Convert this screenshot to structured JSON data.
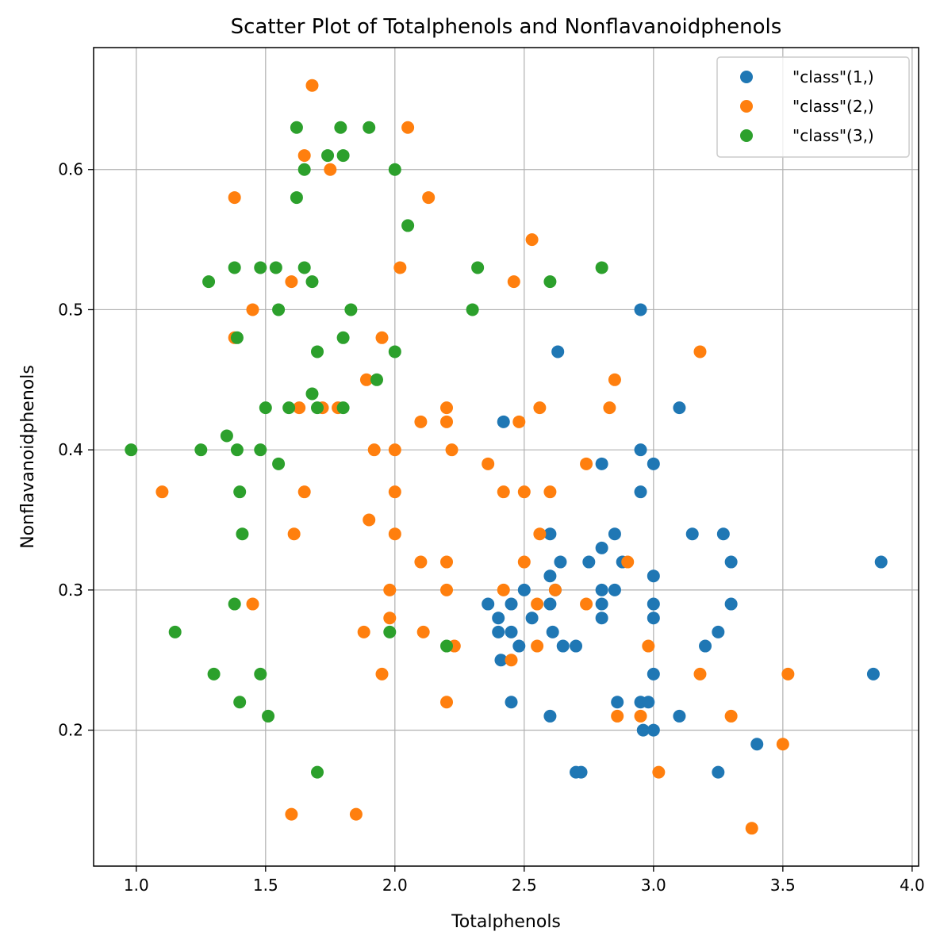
{
  "chart_data": {
    "type": "scatter",
    "title": "Scatter Plot of Totalphenols and Nonflavanoidphenols",
    "xlabel": "Totalphenols",
    "ylabel": "Nonflavanoidphenols",
    "xlim": [
      0.835,
      4.025
    ],
    "ylim": [
      0.103,
      0.687
    ],
    "xticks": [
      1.0,
      1.5,
      2.0,
      2.5,
      3.0,
      3.5,
      4.0
    ],
    "xtick_labels": [
      "1.0",
      "1.5",
      "2.0",
      "2.5",
      "3.0",
      "3.5",
      "4.0"
    ],
    "yticks": [
      0.2,
      0.3,
      0.4,
      0.5,
      0.6
    ],
    "ytick_labels": [
      "0.2",
      "0.3",
      "0.4",
      "0.5",
      "0.6"
    ],
    "grid": true,
    "legend_position": "top-right",
    "series": [
      {
        "name": "\"class\"(1,)",
        "color": "#1f77b4",
        "points": [
          [
            2.95,
            0.5
          ],
          [
            2.63,
            0.47
          ],
          [
            3.1,
            0.43
          ],
          [
            2.42,
            0.42
          ],
          [
            2.95,
            0.4
          ],
          [
            3.0,
            0.39
          ],
          [
            2.8,
            0.39
          ],
          [
            2.95,
            0.37
          ],
          [
            2.6,
            0.34
          ],
          [
            2.85,
            0.34
          ],
          [
            3.15,
            0.34
          ],
          [
            3.27,
            0.34
          ],
          [
            2.8,
            0.33
          ],
          [
            2.64,
            0.32
          ],
          [
            2.75,
            0.32
          ],
          [
            2.88,
            0.32
          ],
          [
            3.3,
            0.32
          ],
          [
            3.88,
            0.32
          ],
          [
            2.6,
            0.31
          ],
          [
            3.0,
            0.31
          ],
          [
            2.5,
            0.3
          ],
          [
            2.62,
            0.3
          ],
          [
            2.8,
            0.3
          ],
          [
            2.85,
            0.3
          ],
          [
            2.36,
            0.29
          ],
          [
            2.45,
            0.29
          ],
          [
            2.6,
            0.29
          ],
          [
            2.8,
            0.29
          ],
          [
            3.0,
            0.29
          ],
          [
            3.3,
            0.29
          ],
          [
            2.4,
            0.28
          ],
          [
            2.53,
            0.28
          ],
          [
            2.8,
            0.28
          ],
          [
            3.0,
            0.28
          ],
          [
            2.4,
            0.27
          ],
          [
            2.45,
            0.27
          ],
          [
            2.61,
            0.27
          ],
          [
            3.25,
            0.27
          ],
          [
            2.48,
            0.26
          ],
          [
            2.65,
            0.26
          ],
          [
            2.7,
            0.26
          ],
          [
            3.2,
            0.26
          ],
          [
            2.41,
            0.25
          ],
          [
            3.0,
            0.24
          ],
          [
            3.85,
            0.24
          ],
          [
            2.45,
            0.22
          ],
          [
            2.86,
            0.22
          ],
          [
            2.95,
            0.22
          ],
          [
            2.98,
            0.22
          ],
          [
            2.6,
            0.21
          ],
          [
            3.1,
            0.21
          ],
          [
            2.96,
            0.2
          ],
          [
            3.0,
            0.2
          ],
          [
            3.4,
            0.19
          ],
          [
            2.7,
            0.17
          ],
          [
            2.72,
            0.17
          ],
          [
            3.25,
            0.17
          ]
        ]
      },
      {
        "name": "\"class\"(2,)",
        "color": "#ff7f0e",
        "points": [
          [
            1.68,
            0.66
          ],
          [
            2.05,
            0.63
          ],
          [
            1.65,
            0.61
          ],
          [
            1.75,
            0.6
          ],
          [
            1.38,
            0.58
          ],
          [
            2.13,
            0.58
          ],
          [
            2.53,
            0.55
          ],
          [
            2.02,
            0.53
          ],
          [
            1.6,
            0.52
          ],
          [
            2.46,
            0.52
          ],
          [
            1.45,
            0.5
          ],
          [
            1.38,
            0.48
          ],
          [
            1.95,
            0.48
          ],
          [
            3.18,
            0.47
          ],
          [
            1.89,
            0.45
          ],
          [
            2.85,
            0.45
          ],
          [
            1.63,
            0.43
          ],
          [
            1.72,
            0.43
          ],
          [
            1.78,
            0.43
          ],
          [
            2.2,
            0.43
          ],
          [
            2.56,
            0.43
          ],
          [
            2.83,
            0.43
          ],
          [
            2.1,
            0.42
          ],
          [
            2.2,
            0.42
          ],
          [
            2.48,
            0.42
          ],
          [
            1.92,
            0.4
          ],
          [
            2.0,
            0.4
          ],
          [
            2.22,
            0.4
          ],
          [
            2.36,
            0.39
          ],
          [
            2.74,
            0.39
          ],
          [
            1.1,
            0.37
          ],
          [
            1.65,
            0.37
          ],
          [
            2.0,
            0.37
          ],
          [
            2.42,
            0.37
          ],
          [
            2.5,
            0.37
          ],
          [
            2.6,
            0.37
          ],
          [
            1.9,
            0.35
          ],
          [
            1.61,
            0.34
          ],
          [
            2.0,
            0.34
          ],
          [
            2.56,
            0.34
          ],
          [
            2.1,
            0.32
          ],
          [
            2.2,
            0.32
          ],
          [
            2.5,
            0.32
          ],
          [
            2.9,
            0.32
          ],
          [
            1.98,
            0.3
          ],
          [
            2.2,
            0.3
          ],
          [
            2.42,
            0.3
          ],
          [
            2.62,
            0.3
          ],
          [
            1.45,
            0.29
          ],
          [
            2.55,
            0.29
          ],
          [
            2.74,
            0.29
          ],
          [
            1.98,
            0.28
          ],
          [
            1.88,
            0.27
          ],
          [
            2.11,
            0.27
          ],
          [
            2.23,
            0.26
          ],
          [
            2.55,
            0.26
          ],
          [
            2.98,
            0.26
          ],
          [
            2.45,
            0.25
          ],
          [
            1.95,
            0.24
          ],
          [
            3.18,
            0.24
          ],
          [
            3.52,
            0.24
          ],
          [
            2.2,
            0.22
          ],
          [
            2.86,
            0.21
          ],
          [
            2.95,
            0.21
          ],
          [
            3.3,
            0.21
          ],
          [
            3.5,
            0.19
          ],
          [
            3.02,
            0.17
          ],
          [
            1.6,
            0.14
          ],
          [
            1.85,
            0.14
          ],
          [
            3.38,
            0.13
          ]
        ]
      },
      {
        "name": "\"class\"(3,)",
        "color": "#2ca02c",
        "points": [
          [
            1.62,
            0.63
          ],
          [
            1.79,
            0.63
          ],
          [
            1.9,
            0.63
          ],
          [
            1.74,
            0.61
          ],
          [
            1.8,
            0.61
          ],
          [
            1.65,
            0.6
          ],
          [
            2.0,
            0.6
          ],
          [
            1.62,
            0.58
          ],
          [
            2.05,
            0.56
          ],
          [
            1.38,
            0.53
          ],
          [
            1.48,
            0.53
          ],
          [
            1.54,
            0.53
          ],
          [
            1.65,
            0.53
          ],
          [
            2.32,
            0.53
          ],
          [
            2.8,
            0.53
          ],
          [
            1.28,
            0.52
          ],
          [
            1.68,
            0.52
          ],
          [
            2.6,
            0.52
          ],
          [
            1.55,
            0.5
          ],
          [
            1.83,
            0.5
          ],
          [
            2.3,
            0.5
          ],
          [
            1.39,
            0.48
          ],
          [
            1.8,
            0.48
          ],
          [
            1.7,
            0.47
          ],
          [
            2.0,
            0.47
          ],
          [
            1.93,
            0.45
          ],
          [
            1.68,
            0.44
          ],
          [
            1.5,
            0.43
          ],
          [
            1.59,
            0.43
          ],
          [
            1.7,
            0.43
          ],
          [
            1.8,
            0.43
          ],
          [
            1.35,
            0.41
          ],
          [
            0.98,
            0.4
          ],
          [
            1.25,
            0.4
          ],
          [
            1.39,
            0.4
          ],
          [
            1.48,
            0.4
          ],
          [
            1.55,
            0.39
          ],
          [
            1.4,
            0.37
          ],
          [
            1.41,
            0.34
          ],
          [
            1.38,
            0.29
          ],
          [
            1.15,
            0.27
          ],
          [
            1.98,
            0.27
          ],
          [
            2.2,
            0.26
          ],
          [
            1.3,
            0.24
          ],
          [
            1.48,
            0.24
          ],
          [
            1.4,
            0.22
          ],
          [
            1.51,
            0.21
          ],
          [
            1.7,
            0.17
          ]
        ]
      }
    ]
  }
}
